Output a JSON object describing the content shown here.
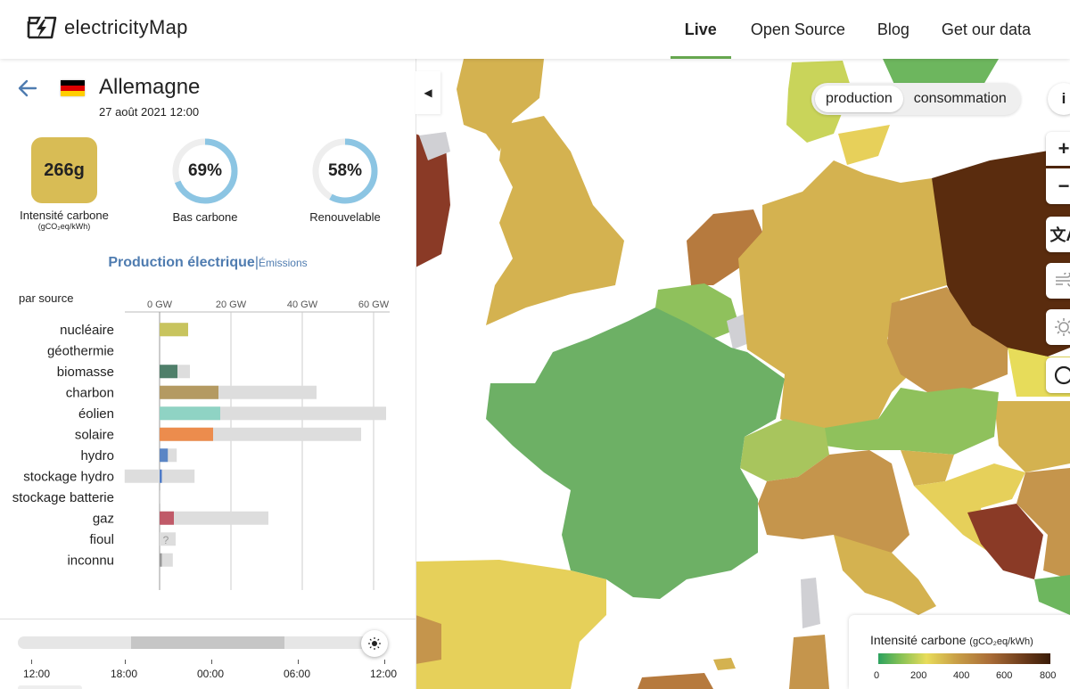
{
  "app": {
    "name": "electricityMap"
  },
  "nav": [
    {
      "label": "Live",
      "active": true
    },
    {
      "label": "Open Source",
      "active": false
    },
    {
      "label": "Blog",
      "active": false
    },
    {
      "label": "Get our data",
      "active": false
    }
  ],
  "zone": {
    "country": "Allemagne",
    "datetime": "27 août 2021 12:00",
    "flag_colors": [
      "#000000",
      "#dd0000",
      "#ffce00"
    ]
  },
  "kpis": {
    "carbon_intensity": {
      "value": "266g",
      "label": "Intensité carbone",
      "unit": "(gCO₂eq/kWh)",
      "color": "#d8bc55"
    },
    "low_carbon": {
      "value": "69%",
      "fraction": 0.69,
      "label": "Bas carbone"
    },
    "renewable": {
      "value": "58%",
      "fraction": 0.58,
      "label": "Renouvelable"
    }
  },
  "production": {
    "title": "Production électrique",
    "separator": "|",
    "alt_tab": "Émissions",
    "subtitle": "par source"
  },
  "chart_data": {
    "type": "bar",
    "xlabel": "",
    "ylabel": "",
    "xlim": [
      -10,
      64
    ],
    "ticks": [
      {
        "value": 0,
        "label": "0 GW"
      },
      {
        "value": 20,
        "label": "20 GW"
      },
      {
        "value": 40,
        "label": "40 GW"
      },
      {
        "value": 60,
        "label": "60 GW"
      }
    ],
    "categories": [
      "nucléaire",
      "géothermie",
      "biomasse",
      "charbon",
      "éolien",
      "solaire",
      "hydro",
      "stockage hydro",
      "stockage batterie",
      "gaz",
      "fioul",
      "inconnu"
    ],
    "series": [
      {
        "values": [
          8,
          0,
          5,
          16.5,
          17,
          15,
          2.3,
          0.6,
          0,
          4,
          0,
          0.3
        ],
        "colors": [
          "#c8c45e",
          "#c87d46",
          "#4f7f6a",
          "#b49a62",
          "#8fd3c4",
          "#ec8c4d",
          "#5b86c5",
          "#4f7cc8",
          "#a0c4e6",
          "#c05a68",
          "#888888",
          "#999999"
        ]
      },
      {
        "values": [
          8,
          0,
          8.5,
          44,
          63.5,
          56.5,
          4.8,
          9.8,
          0.3,
          30.5,
          4.5,
          3.7
        ],
        "min_values": [
          0,
          0,
          0,
          0,
          0,
          0,
          0,
          -9.8,
          0,
          0,
          0,
          0
        ],
        "color": "#dddddd"
      }
    ],
    "unknown_marker": {
      "category": "fioul",
      "label": "?"
    }
  },
  "timeline": {
    "labels": [
      "12:00",
      "18:00",
      "00:00",
      "06:00",
      "12:00"
    ],
    "range_fraction": [
      0.31,
      0.73
    ],
    "knob_icon": "sun-icon"
  },
  "map": {
    "toggle": {
      "production": "production",
      "consumption": "consommation",
      "selected": "production"
    },
    "info": "i",
    "controls": [
      "zoom-in-icon",
      "zoom-out-icon",
      "language-icon",
      "wind-icon",
      "sun-icon",
      "dark-mode-icon"
    ],
    "legend": {
      "title": "Intensité carbone",
      "unit": "(gCO₂eq/kWh)",
      "labels": [
        "0",
        "200",
        "400",
        "600",
        "800"
      ]
    }
  }
}
